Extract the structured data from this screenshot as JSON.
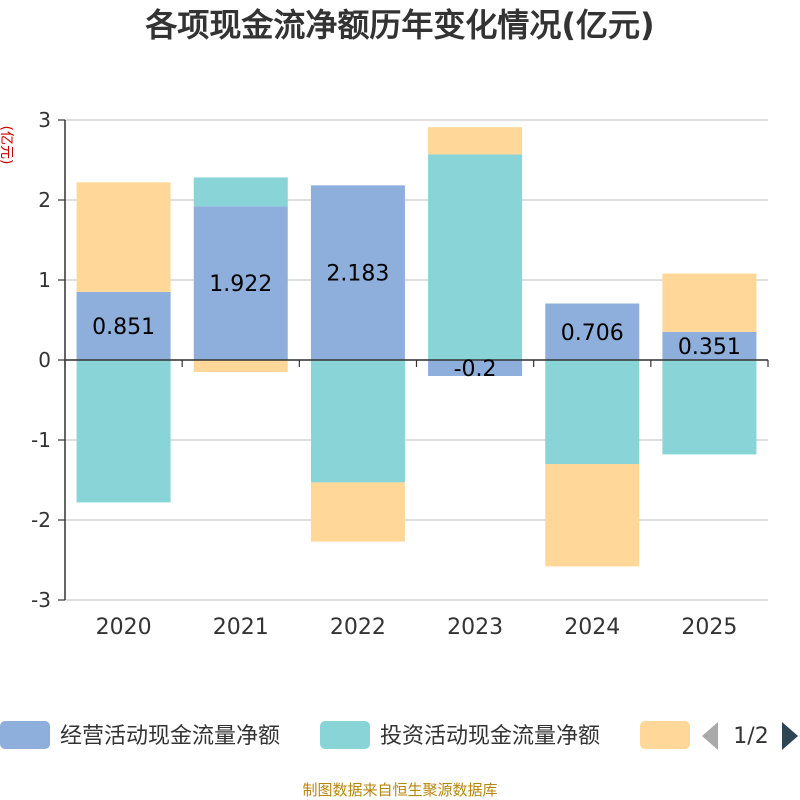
{
  "chart_data": {
    "type": "bar",
    "stacked": true,
    "title": "各项现金流净额历年变化情况(亿元)",
    "ylabel": "(亿元)",
    "xlabel": "",
    "categories": [
      "2020",
      "2021",
      "2022",
      "2023",
      "2024",
      "2025"
    ],
    "ylim": [
      -3,
      3
    ],
    "yticks": [
      3,
      2,
      1,
      0,
      -1,
      -2,
      -3
    ],
    "grid": true,
    "series": [
      {
        "name": "经营活动现金流量净额",
        "color": "#8eaedb",
        "values": [
          0.851,
          1.922,
          2.183,
          -0.2,
          0.706,
          0.351
        ],
        "labels": [
          "0.851",
          "1.922",
          "2.183",
          "-0.2",
          "0.706",
          "0.351"
        ]
      },
      {
        "name": "投资活动现金流量净额",
        "color": "#88d4d6",
        "values": [
          -1.78,
          0.36,
          -1.53,
          2.57,
          -1.3,
          -1.18
        ]
      },
      {
        "name": "",
        "color": "#ffd899",
        "values": [
          1.37,
          -0.15,
          -0.74,
          0.34,
          -1.28,
          0.73
        ]
      }
    ],
    "legend": {
      "position": "bottom",
      "page": "1/2"
    }
  },
  "source": "制图数据来自恒生聚源数据库"
}
